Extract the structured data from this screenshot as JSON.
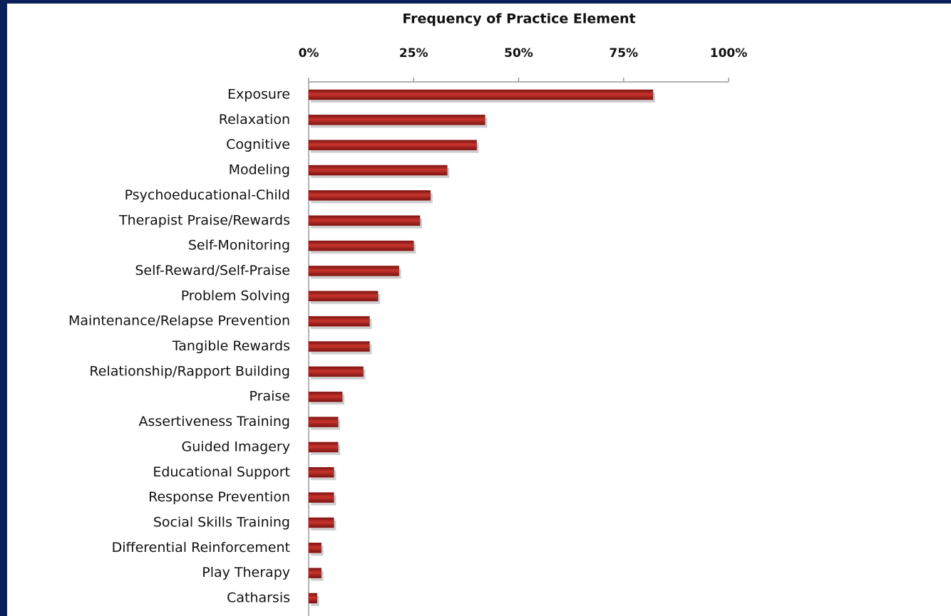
{
  "chart_data": {
    "type": "barh",
    "title": "Frequency of Practice Element",
    "categories": [
      "Exposure",
      "Relaxation",
      "Cognitive",
      "Modeling",
      "Psychoeducational-Child",
      "Therapist Praise/Rewards",
      "Self-Monitoring",
      "Self-Reward/Self-Praise",
      "Problem Solving",
      "Maintenance/Relapse Prevention",
      "Tangible Rewards",
      "Relationship/Rapport Building",
      "Praise",
      "Assertiveness Training",
      "Guided Imagery",
      "Educational Support",
      "Response Prevention",
      "Social Skills Training",
      "Differential Reinforcement",
      "Play Therapy",
      "Catharsis"
    ],
    "values": [
      82,
      42,
      40,
      33,
      29,
      26.5,
      25,
      21.5,
      16.5,
      14.5,
      14.5,
      13,
      8,
      7,
      7,
      6,
      6,
      6,
      3,
      3,
      2
    ],
    "color": "#a11d1a",
    "xlim": [
      0,
      100
    ],
    "xticks": [
      {
        "value": 0,
        "label": "0%"
      },
      {
        "value": 25,
        "label": "25%"
      },
      {
        "value": 50,
        "label": "50%"
      },
      {
        "value": 75,
        "label": "75%"
      },
      {
        "value": 100,
        "label": "100%"
      }
    ]
  }
}
